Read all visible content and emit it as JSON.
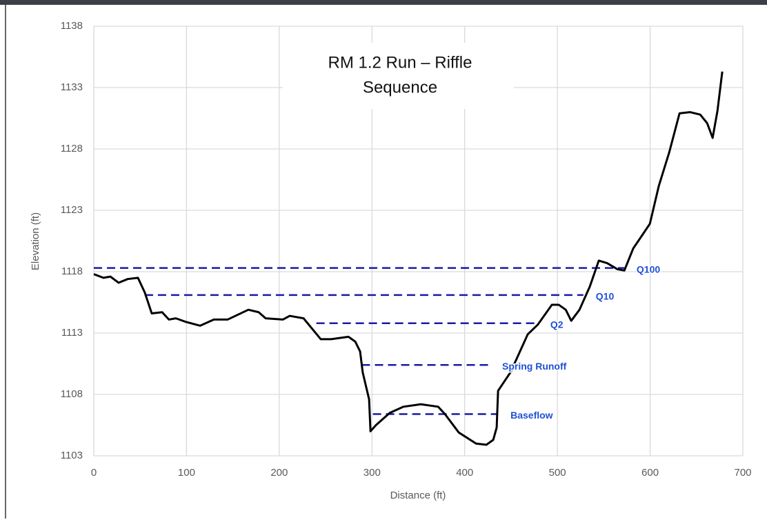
{
  "chart_data": {
    "type": "line",
    "title": [
      "RM 1.2 Run – Riffle",
      "Sequence"
    ],
    "x_label": "Distance (ft)",
    "y_label": "Elevation  (ft)",
    "xlim": [
      0,
      700
    ],
    "ylim": [
      1103,
      1138
    ],
    "xticks": [
      0,
      100,
      200,
      300,
      400,
      500,
      600,
      700
    ],
    "yticks": [
      1103,
      1108,
      1113,
      1118,
      1123,
      1128,
      1133,
      1138
    ],
    "grid": true,
    "series": [
      {
        "color": "#000000",
        "x": [
          0,
          10.4,
          17.9,
          26.8,
          36.5,
          47.6,
          55,
          62.5,
          73.7,
          81,
          88.5,
          99.7,
          114.6,
          129.5,
          144.3,
          166.7,
          177.8,
          185.3,
          203.9,
          211.3,
          226.2,
          244.8,
          256,
          274.6,
          282,
          287.2,
          290,
          296.9,
          298.4,
          304.3,
          319.2,
          334,
          352.7,
          371.3,
          378.7,
          393.6,
          412.2,
          423.4,
          430.8,
          434.5,
          436,
          449.4,
          468,
          479,
          494,
          501.5,
          509,
          514.9,
          523.8,
          535,
          544.6,
          553.6,
          564.7,
          572.2,
          581.8,
          590.8,
          599.7,
          609.4,
          620.5,
          631.7,
          642.9,
          654,
          661.5,
          667.4,
          672.6,
          677.8
        ],
        "values": [
          1117.8,
          1117.5,
          1117.6,
          1117.1,
          1117.4,
          1117.5,
          1116.3,
          1114.6,
          1114.7,
          1114.1,
          1114.2,
          1113.9,
          1113.6,
          1114.1,
          1114.1,
          1114.9,
          1114.7,
          1114.2,
          1114.1,
          1114.4,
          1114.2,
          1112.5,
          1112.5,
          1112.7,
          1112.3,
          1111.5,
          1109.8,
          1107.6,
          1105,
          1105.5,
          1106.5,
          1107,
          1107.2,
          1107,
          1106.4,
          1104.9,
          1104,
          1103.9,
          1104.3,
          1105.3,
          1108.3,
          1109.8,
          1112.9,
          1113.7,
          1115.3,
          1115.3,
          1114.9,
          1114,
          1114.9,
          1116.8,
          1118.9,
          1118.7,
          1118.2,
          1118.1,
          1119.9,
          1120.9,
          1121.9,
          1125,
          1127.7,
          1130.9,
          1131,
          1130.8,
          1130.1,
          1128.9,
          1131.1,
          1134.3
        ]
      }
    ],
    "levels": [
      {
        "name": "Q100",
        "value": 1118.3,
        "x": [
          0,
          572
        ],
        "color": "#1a1aa6"
      },
      {
        "name": "Q10",
        "value": 1116.1,
        "x": [
          55,
          528
        ],
        "color": "#1a1aa6"
      },
      {
        "name": "Q2",
        "value": 1113.8,
        "x": [
          240,
          479
        ],
        "color": "#1a1aa6"
      },
      {
        "name": "Spring Runoff",
        "value": 1110.4,
        "x": [
          289,
          427
        ],
        "color": "#1a1aa6"
      },
      {
        "name": "Baseflow",
        "value": 1106.4,
        "x": [
          301,
          436
        ],
        "color": "#1a1aa6"
      }
    ]
  }
}
